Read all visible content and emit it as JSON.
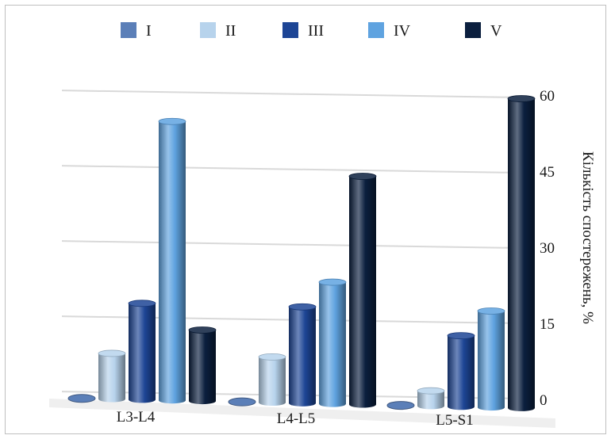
{
  "chart_data": {
    "type": "bar",
    "categories": [
      "L3-L4",
      "L4-L5",
      "L5-S1"
    ],
    "series": [
      {
        "name": "I",
        "color": "#5b7fb8",
        "values": [
          0,
          0,
          0
        ]
      },
      {
        "name": "II",
        "color": "#b7d3ec",
        "values": [
          9,
          9,
          3
        ]
      },
      {
        "name": "III",
        "color": "#1d4595",
        "values": [
          19,
          19,
          14
        ]
      },
      {
        "name": "IV",
        "color": "#5fa3e0",
        "values": [
          55,
          24,
          19
        ]
      },
      {
        "name": "V",
        "color": "#0b1f3e",
        "values": [
          14,
          45,
          61
        ]
      }
    ],
    "ylabel": "Кількість спостережень, %",
    "ylim": [
      0,
      60
    ],
    "yticks": [
      "0",
      "15",
      "30",
      "45",
      "60"
    ],
    "grid": true,
    "legend": "top",
    "style": "3d-cylinder"
  }
}
